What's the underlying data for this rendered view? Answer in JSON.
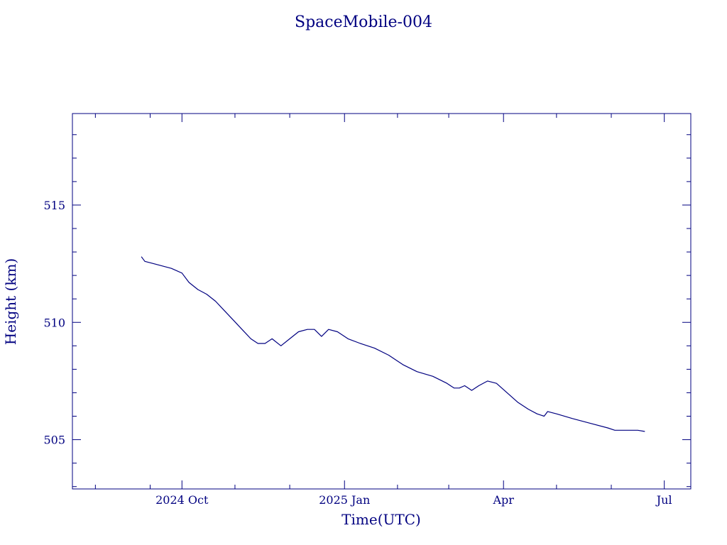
{
  "chart_data": {
    "type": "line",
    "title": "SpaceMobile-004",
    "xlabel": "Time(UTC)",
    "ylabel": "Height (km)",
    "color": "#000080",
    "xlim": [
      "2024-07-31",
      "2025-07-16"
    ],
    "ylim": [
      502.9,
      518.9
    ],
    "x_major_ticks": [
      {
        "date": "2024-10-01",
        "label": "2024 Oct"
      },
      {
        "date": "2025-01-01",
        "label": "2025 Jan"
      },
      {
        "date": "2025-04-01",
        "label": "Apr"
      },
      {
        "date": "2025-07-01",
        "label": "Jul"
      }
    ],
    "x_minor_ticks": [
      "2024-08-13",
      "2024-09-13",
      "2024-10-31",
      "2024-12-01",
      "2025-01-31",
      "2025-03-01",
      "2025-05-01",
      "2025-06-01"
    ],
    "y_major_ticks": [
      505,
      510,
      515
    ],
    "y_minor_step": 1,
    "grid": false,
    "series": [
      {
        "points": [
          [
            "2024-09-08",
            512.8
          ],
          [
            "2024-09-10",
            512.6
          ],
          [
            "2024-09-15",
            512.5
          ],
          [
            "2024-09-25",
            512.3
          ],
          [
            "2024-10-01",
            512.1
          ],
          [
            "2024-10-05",
            511.7
          ],
          [
            "2024-10-10",
            511.4
          ],
          [
            "2024-10-15",
            511.2
          ],
          [
            "2024-10-20",
            510.9
          ],
          [
            "2024-10-25",
            510.5
          ],
          [
            "2024-10-30",
            510.1
          ],
          [
            "2024-11-04",
            509.7
          ],
          [
            "2024-11-09",
            509.3
          ],
          [
            "2024-11-13",
            509.1
          ],
          [
            "2024-11-17",
            509.1
          ],
          [
            "2024-11-21",
            509.3
          ],
          [
            "2024-11-26",
            509.0
          ],
          [
            "2024-12-01",
            509.3
          ],
          [
            "2024-12-06",
            509.6
          ],
          [
            "2024-12-11",
            509.7
          ],
          [
            "2024-12-15",
            509.7
          ],
          [
            "2024-12-19",
            509.4
          ],
          [
            "2024-12-23",
            509.7
          ],
          [
            "2024-12-28",
            509.6
          ],
          [
            "2025-01-03",
            509.3
          ],
          [
            "2025-01-10",
            509.1
          ],
          [
            "2025-01-18",
            508.9
          ],
          [
            "2025-01-26",
            508.6
          ],
          [
            "2025-02-03",
            508.2
          ],
          [
            "2025-02-11",
            507.9
          ],
          [
            "2025-02-20",
            507.7
          ],
          [
            "2025-02-28",
            507.4
          ],
          [
            "2025-03-04",
            507.2
          ],
          [
            "2025-03-07",
            507.2
          ],
          [
            "2025-03-10",
            507.3
          ],
          [
            "2025-03-14",
            507.1
          ],
          [
            "2025-03-18",
            507.3
          ],
          [
            "2025-03-23",
            507.5
          ],
          [
            "2025-03-28",
            507.4
          ],
          [
            "2025-04-03",
            507.0
          ],
          [
            "2025-04-09",
            506.6
          ],
          [
            "2025-04-15",
            506.3
          ],
          [
            "2025-04-20",
            506.1
          ],
          [
            "2025-04-24",
            506.0
          ],
          [
            "2025-04-26",
            506.2
          ],
          [
            "2025-05-01",
            506.1
          ],
          [
            "2025-05-10",
            505.9
          ],
          [
            "2025-05-20",
            505.7
          ],
          [
            "2025-05-30",
            505.5
          ],
          [
            "2025-06-03",
            505.4
          ],
          [
            "2025-06-10",
            505.4
          ],
          [
            "2025-06-16",
            505.4
          ],
          [
            "2025-06-20",
            505.35
          ]
        ]
      }
    ]
  }
}
